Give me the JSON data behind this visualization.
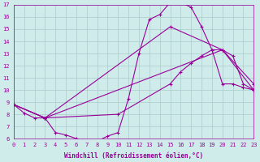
{
  "xlabel": "Windchill (Refroidissement éolien,°C)",
  "background_color": "#d0ecea",
  "line_color": "#990099",
  "grid_color": "#aacccc",
  "xmin": 0,
  "xmax": 23,
  "ymin": 6,
  "ymax": 17,
  "lines": [
    {
      "x": [
        0,
        1,
        2,
        3,
        4,
        5,
        6,
        7,
        8,
        9,
        10,
        11,
        12,
        13,
        14,
        15,
        16,
        17,
        18,
        19,
        20,
        21,
        22,
        23
      ],
      "y": [
        8.8,
        8.1,
        7.7,
        7.7,
        6.5,
        6.3,
        6.0,
        5.8,
        5.8,
        6.2,
        6.5,
        9.3,
        13.0,
        15.8,
        16.2,
        17.2,
        17.2,
        16.8,
        15.2,
        13.3,
        10.5,
        10.5,
        10.2,
        10.0
      ]
    },
    {
      "x": [
        0,
        3,
        20,
        23
      ],
      "y": [
        8.8,
        7.7,
        13.3,
        10.0
      ]
    },
    {
      "x": [
        0,
        3,
        15,
        20,
        23
      ],
      "y": [
        8.8,
        7.7,
        15.2,
        13.3,
        10.5
      ]
    },
    {
      "x": [
        0,
        3,
        10,
        15,
        16,
        17,
        18,
        19,
        20,
        21,
        22,
        23
      ],
      "y": [
        8.8,
        7.7,
        8.0,
        10.5,
        11.5,
        12.2,
        12.8,
        13.3,
        13.3,
        12.8,
        10.5,
        10.0
      ]
    }
  ],
  "yticks": [
    6,
    7,
    8,
    9,
    10,
    11,
    12,
    13,
    14,
    15,
    16,
    17
  ],
  "xticks": [
    0,
    1,
    2,
    3,
    4,
    5,
    6,
    7,
    8,
    9,
    10,
    11,
    12,
    13,
    14,
    15,
    16,
    17,
    18,
    19,
    20,
    21,
    22,
    23
  ],
  "xlabel_fontsize": 5.5,
  "tick_fontsize": 5.0
}
